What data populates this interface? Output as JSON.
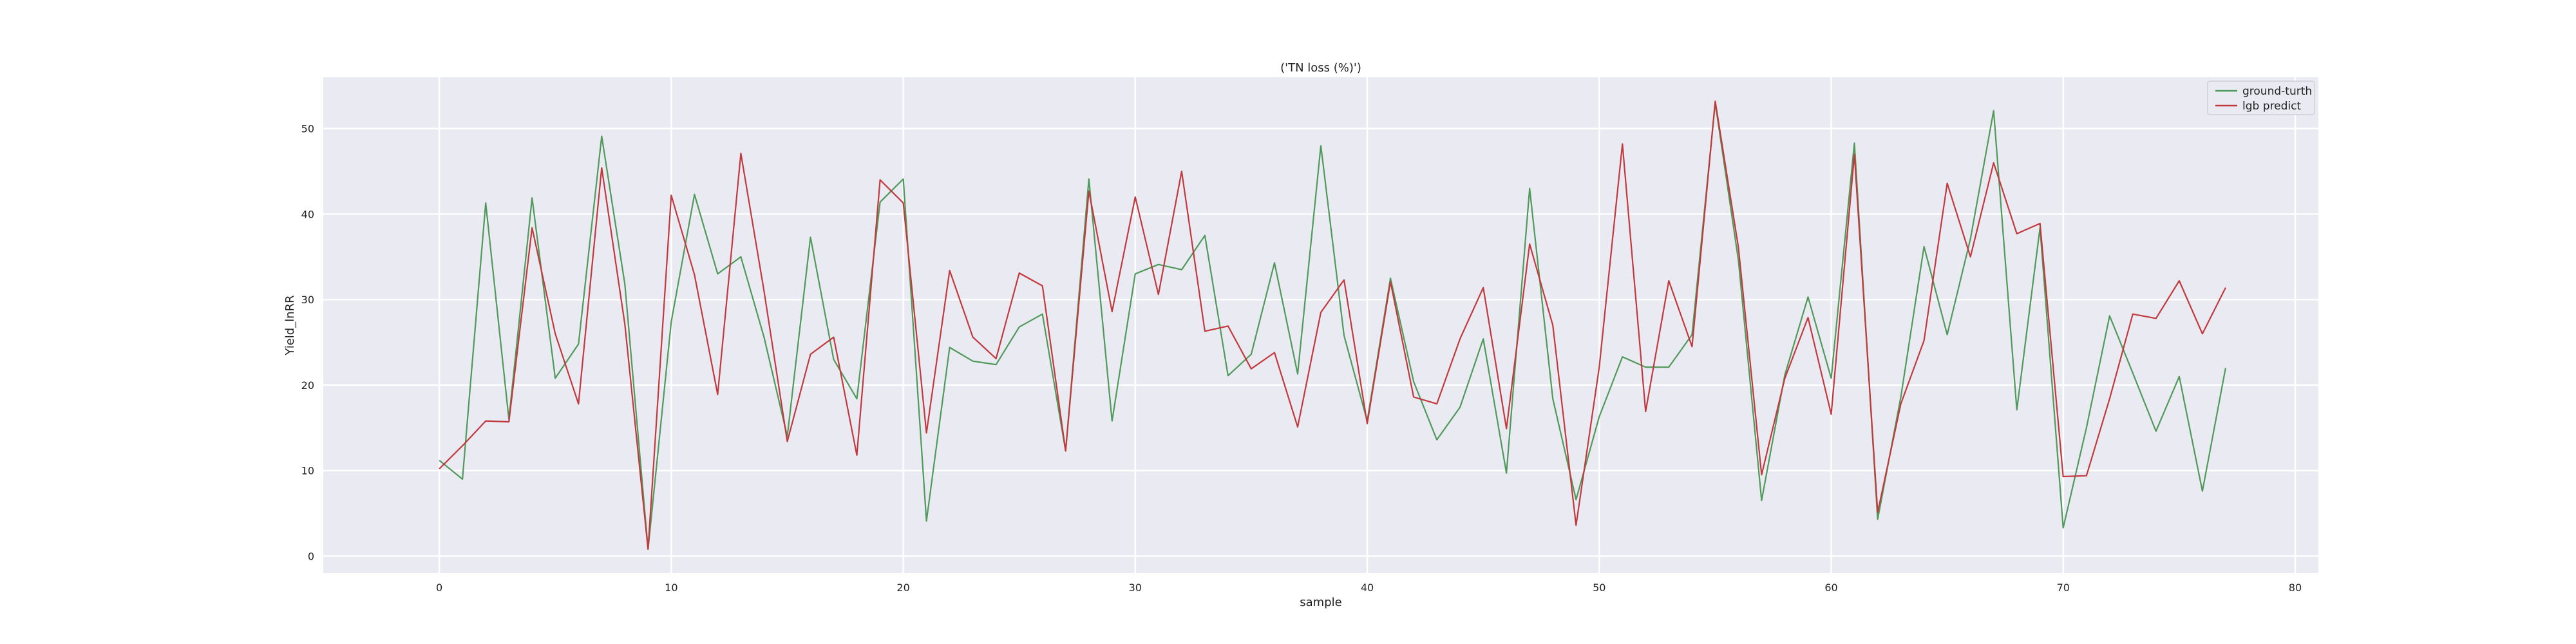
{
  "chart_data": {
    "type": "line",
    "title": "('TN loss (%)')",
    "xlabel": "sample",
    "ylabel": "Yield_lnRR",
    "xlim": [
      -5,
      81
    ],
    "ylim": [
      -2,
      56
    ],
    "xticks": [
      0,
      10,
      20,
      30,
      40,
      50,
      60,
      70,
      80
    ],
    "yticks": [
      0,
      10,
      20,
      30,
      40,
      50
    ],
    "xtick_labels": [
      "0",
      "10",
      "20",
      "30",
      "40",
      "50",
      "60",
      "70",
      "80"
    ],
    "ytick_labels": [
      "0",
      "10",
      "20",
      "30",
      "40",
      "50"
    ],
    "grid": true,
    "legend_position": "top-right",
    "x": [
      0,
      1,
      2,
      3,
      4,
      5,
      6,
      7,
      8,
      9,
      10,
      11,
      12,
      13,
      14,
      15,
      16,
      17,
      18,
      19,
      20,
      21,
      22,
      23,
      24,
      25,
      26,
      27,
      28,
      29,
      30,
      31,
      32,
      33,
      34,
      35,
      36,
      37,
      38,
      39,
      40,
      41,
      42,
      43,
      44,
      45,
      46,
      47,
      48,
      49,
      50,
      51,
      52,
      53,
      54,
      55,
      56,
      57,
      58,
      59,
      60,
      61,
      62,
      63,
      64,
      65,
      66,
      67,
      68,
      69,
      70,
      71,
      72,
      73,
      74,
      75,
      76,
      77
    ],
    "series": [
      {
        "name": "ground-turth",
        "color": "#4f9a5a",
        "values": [
          11.2,
          9.0,
          41.3,
          16.0,
          41.9,
          20.8,
          24.8,
          49.1,
          31.8,
          0.8,
          27.4,
          42.3,
          33.0,
          35.0,
          25.6,
          14.0,
          37.3,
          23.0,
          18.4,
          41.4,
          44.1,
          4.1,
          24.4,
          22.8,
          22.4,
          26.8,
          28.3,
          12.3,
          44.1,
          15.8,
          33.0,
          34.1,
          33.5,
          37.5,
          21.1,
          23.6,
          34.3,
          21.3,
          48.0,
          25.8,
          15.8,
          32.5,
          20.4,
          13.6,
          17.4,
          25.4,
          9.7,
          43.0,
          18.4,
          6.6,
          16.3,
          23.3,
          22.1,
          22.1,
          25.9,
          53.0,
          34.6,
          6.5,
          21.2,
          30.3,
          20.8,
          48.3,
          4.3,
          18.6,
          36.2,
          25.9,
          37.1,
          52.1,
          17.1,
          38.4,
          3.3,
          15.0,
          28.1,
          21.4,
          14.6,
          21.0,
          7.6,
          22.0
        ]
      },
      {
        "name": "lgb predict",
        "color": "#c1393d",
        "values": [
          10.2,
          12.9,
          15.8,
          15.7,
          38.4,
          26.0,
          17.8,
          45.4,
          27.1,
          0.8,
          42.2,
          32.9,
          18.9,
          47.1,
          31.0,
          13.4,
          23.6,
          25.6,
          11.8,
          44.0,
          41.3,
          14.4,
          33.4,
          25.6,
          23.1,
          33.1,
          31.6,
          12.3,
          42.7,
          28.6,
          42.0,
          30.6,
          45.0,
          26.3,
          26.9,
          21.9,
          23.8,
          15.1,
          28.5,
          32.3,
          15.5,
          32.1,
          18.6,
          17.8,
          25.4,
          31.4,
          14.9,
          36.5,
          27.0,
          3.6,
          22.1,
          48.2,
          16.9,
          32.2,
          24.5,
          53.2,
          36.1,
          9.5,
          20.8,
          27.9,
          16.6,
          47.0,
          5.1,
          17.8,
          25.2,
          43.6,
          35.0,
          46.0,
          37.7,
          38.9,
          9.3,
          9.4,
          18.4,
          28.3,
          27.8,
          32.2,
          26.0,
          31.4
        ]
      }
    ]
  }
}
